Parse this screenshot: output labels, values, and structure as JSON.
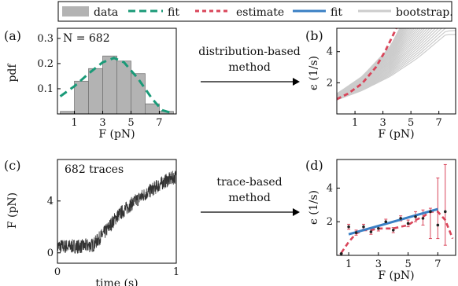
{
  "legend": {
    "items": [
      {
        "label": "data",
        "kind": "bar",
        "color": "#b3b3b3"
      },
      {
        "label": "fit",
        "kind": "dashed",
        "color": "#1a9a78"
      },
      {
        "label": "estimate",
        "kind": "dashed",
        "color": "#d9455a"
      },
      {
        "label": "fit",
        "kind": "solid",
        "color": "#3a7fc4"
      },
      {
        "label": "bootstrap.",
        "kind": "solid",
        "color": "#cccccc"
      }
    ]
  },
  "methods": {
    "top_line1": "distribution-based",
    "top_line2": "method",
    "bottom_line1": "trace-based",
    "bottom_line2": "method"
  },
  "chart_data": [
    {
      "id": "a",
      "panel_label": "(a)",
      "type": "bar",
      "annotation": "N = 682",
      "xlabel": "F (pN)",
      "ylabel": "pdf",
      "xlim": [
        -0.2,
        8.2
      ],
      "ylim": [
        0,
        0.34
      ],
      "xticks": [
        "1",
        "3",
        "5",
        "7"
      ],
      "yticks": [
        "0.1",
        "0.2",
        "0.3"
      ],
      "bin_edges": [
        0,
        1,
        2,
        3,
        4,
        5,
        6,
        7,
        8
      ],
      "values": [
        0.01,
        0.13,
        0.18,
        0.23,
        0.21,
        0.16,
        0.04,
        0.01
      ],
      "fit_x": [
        0,
        1,
        2,
        3,
        3.8,
        4.5,
        5.5,
        6.5,
        7.2,
        8
      ],
      "fit_y": [
        0.07,
        0.11,
        0.16,
        0.205,
        0.222,
        0.205,
        0.14,
        0.06,
        0.015,
        0.002
      ],
      "colors": {
        "bar": "#b3b3b3",
        "fit": "#1a9a78"
      }
    },
    {
      "id": "b",
      "panel_label": "(b)",
      "type": "line",
      "xlabel": "F (pN)",
      "ylabel": "ϵ (1/s)",
      "xlim": [
        -0.3,
        8.2
      ],
      "ylim": [
        0,
        5.5
      ],
      "xticks": [
        "1",
        "3",
        "5",
        "7"
      ],
      "yticks": [
        "2",
        "4"
      ],
      "estimate_x": [
        -0.3,
        0.5,
        1.5,
        2.5,
        3.2,
        3.8,
        4.2
      ],
      "estimate_y": [
        0.95,
        1.3,
        1.95,
        3.0,
        4.1,
        5.2,
        6.0
      ],
      "bootstrap_band_low": {
        "x": [
          -0.3,
          1.5,
          3.5,
          5.5,
          7.5
        ],
        "y": [
          0.9,
          1.5,
          2.4,
          3.6,
          5.1
        ]
      },
      "bootstrap_band_high": {
        "x": [
          -0.3,
          1.5,
          3.5,
          4.5
        ],
        "y": [
          1.3,
          2.4,
          4.3,
          6.0
        ]
      },
      "colors": {
        "estimate": "#d9455a",
        "bootstrap": "#cccccc"
      }
    },
    {
      "id": "c",
      "panel_label": "(c)",
      "type": "line",
      "annotation": "682 traces",
      "xlabel": "time (s)",
      "ylabel": "F (pN)",
      "xlim": [
        0,
        1
      ],
      "ylim": [
        -0.8,
        7.2
      ],
      "xticks": [
        "0",
        "1"
      ],
      "yticks": [
        "0",
        "4"
      ],
      "trend_x": [
        0,
        0.2,
        0.3,
        0.4,
        0.5,
        0.6,
        0.7,
        0.8,
        0.9,
        1.0
      ],
      "trend_y": [
        0.5,
        0.5,
        0.6,
        1.6,
        2.8,
        3.6,
        4.3,
        4.9,
        5.5,
        5.9
      ],
      "colors": {
        "trace": "#333333"
      }
    },
    {
      "id": "d",
      "panel_label": "(d)",
      "type": "line",
      "xlabel": "F (pN)",
      "ylabel": "ϵ (1/s)",
      "xlim": [
        0.2,
        8.2
      ],
      "ylim": [
        0,
        5.7
      ],
      "xticks": [
        "1",
        "3",
        "5",
        "7"
      ],
      "yticks": [
        "2",
        "4"
      ],
      "points_x": [
        0.5,
        1.0,
        1.5,
        2.0,
        2.5,
        3.0,
        3.5,
        4.0,
        4.5,
        5.0,
        5.5,
        6.0,
        6.5,
        7.0,
        7.5
      ],
      "points_y": [
        0.1,
        1.7,
        1.35,
        1.7,
        1.4,
        1.6,
        2.0,
        1.5,
        2.2,
        1.9,
        2.3,
        2.2,
        2.6,
        1.8,
        2.6
      ],
      "error_low": [
        0.1,
        1.55,
        1.2,
        1.55,
        1.25,
        1.45,
        1.85,
        1.35,
        2.05,
        1.7,
        2.0,
        1.8,
        1.0,
        1.0,
        0.6
      ],
      "error_high": [
        0.1,
        1.85,
        1.5,
        1.85,
        1.55,
        1.75,
        2.15,
        1.65,
        2.35,
        2.1,
        2.6,
        2.7,
        2.8,
        4.6,
        5.4
      ],
      "estimate_x": [
        0.5,
        1.0,
        1.5,
        2.0,
        2.5,
        3.0,
        3.5,
        4.0,
        4.5,
        5.0,
        5.5,
        6.0,
        6.5,
        7.0,
        7.5,
        8.0
      ],
      "estimate_y": [
        0.15,
        0.8,
        1.3,
        1.5,
        1.5,
        1.6,
        1.6,
        1.6,
        1.7,
        1.8,
        2.1,
        2.3,
        2.6,
        2.6,
        2.1,
        1.0
      ],
      "fit_x": [
        1.0,
        7.0
      ],
      "fit_y": [
        1.25,
        2.75
      ],
      "colors": {
        "points": "#222222",
        "errorbar": "#d9455a",
        "estimate": "#d9455a",
        "fit": "#3a7fc4"
      }
    }
  ]
}
